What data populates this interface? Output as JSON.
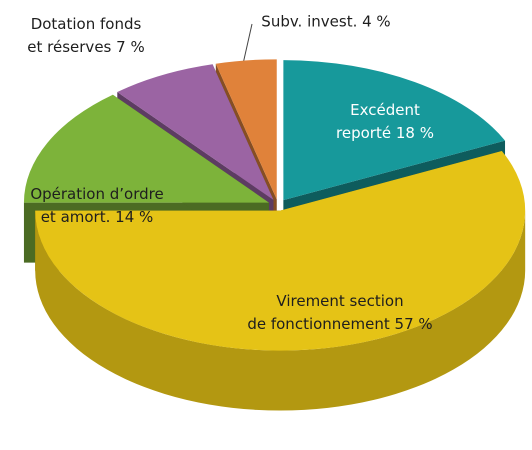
{
  "chart_data": {
    "type": "pie3d",
    "categories": [
      "Excédent\nreporté",
      "Virement section\nde fonctionnement",
      "Opération d’ordre\net amort.",
      "Dotation fonds\net réserves",
      "Subv. invest."
    ],
    "values": [
      18,
      57,
      14,
      7,
      4
    ],
    "value_labels": [
      "18 %",
      "57 %",
      "14 %",
      "7 %",
      "4 %"
    ],
    "colors": [
      "#17999b",
      "#e5c316",
      "#7db33a",
      "#9b64a3",
      "#e0823a"
    ]
  }
}
